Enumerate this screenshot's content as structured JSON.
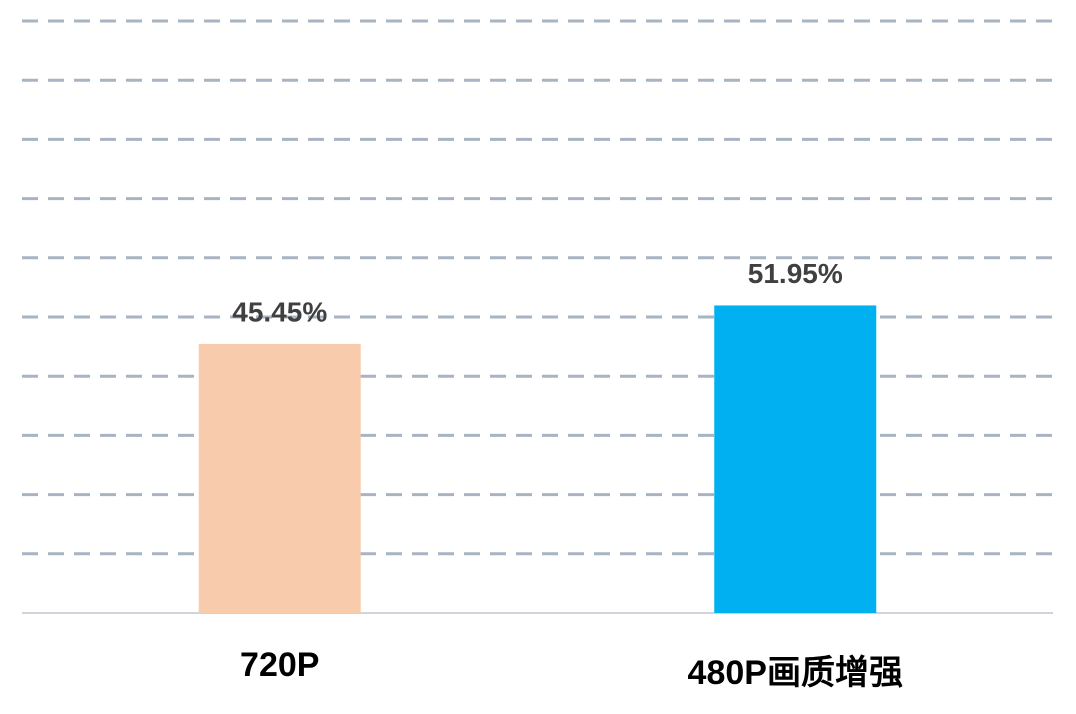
{
  "chart_data": {
    "type": "bar",
    "categories": [
      "720P",
      "480P画质增强"
    ],
    "values": [
      45.45,
      51.95
    ],
    "value_labels": [
      "45.45%",
      "51.95%"
    ],
    "colors": [
      "#f8cbad",
      "#00b0f0"
    ],
    "ylim": [
      0,
      100
    ],
    "yticks": [
      0,
      10,
      20,
      30,
      40,
      50,
      60,
      70,
      80,
      90,
      100
    ],
    "grid": true
  }
}
